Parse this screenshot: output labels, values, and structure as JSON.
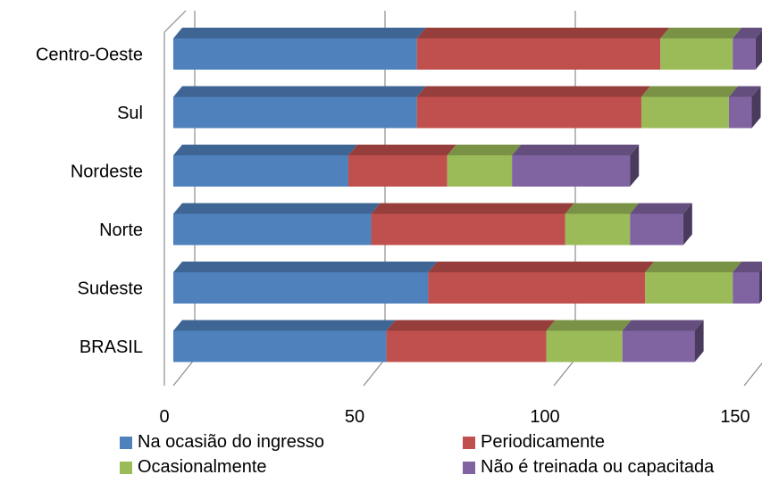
{
  "chart_data": {
    "type": "bar",
    "orientation": "horizontal",
    "stacked": true,
    "three_d": true,
    "categories": [
      "Centro-Oeste",
      "Sul",
      "Nordeste",
      "Norte",
      "Sudeste ",
      "BRASIL"
    ],
    "x_ticks": [
      "0",
      "50",
      "100",
      "150"
    ],
    "xlim": [
      0,
      150
    ],
    "grid": "vertical gridlines",
    "legend_position": "bottom",
    "series": [
      {
        "name": "Na ocasião do ingresso",
        "color": "#4f81bd",
        "values": [
          64,
          64,
          46,
          52,
          67,
          56
        ]
      },
      {
        "name": "Periodicamente",
        "color": "#c0504d",
        "values": [
          64,
          59,
          26,
          51,
          57,
          42
        ]
      },
      {
        "name": "Ocasionalmente",
        "color": "#9bbb59",
        "values": [
          19,
          23,
          17,
          17,
          23,
          20
        ]
      },
      {
        "name": "Não é treinada ou capacitada",
        "color": "#8064a2",
        "values": [
          6,
          6,
          31,
          14,
          7,
          19
        ]
      }
    ]
  }
}
